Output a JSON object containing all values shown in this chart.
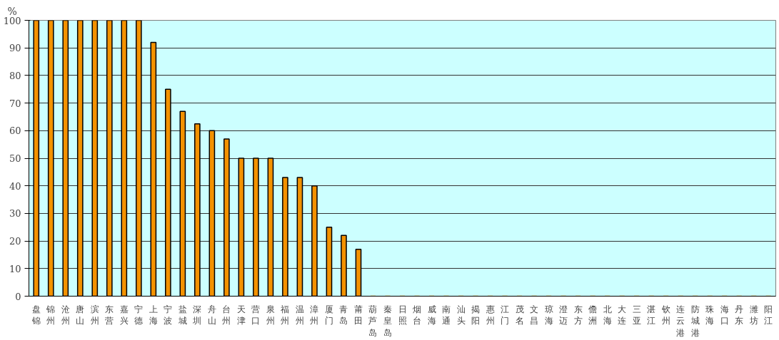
{
  "chart_data": {
    "type": "bar",
    "ylabel": "%",
    "categories": [
      "盘锦",
      "锦州",
      "沧州",
      "唐山",
      "滨州",
      "东营",
      "嘉兴",
      "宁德",
      "上海",
      "宁波",
      "盐城",
      "深圳",
      "舟山",
      "台州",
      "天津",
      "营口",
      "泉州",
      "福州",
      "温州",
      "漳州",
      "厦门",
      "青岛",
      "莆田",
      "葫芦岛",
      "秦皇岛",
      "日照",
      "烟台",
      "威海",
      "南通",
      "汕头",
      "揭阳",
      "惠州",
      "江门",
      "茂名",
      "文昌",
      "琼海",
      "澄迈",
      "东方",
      "儋洲",
      "北海",
      "大连",
      "三亚",
      "湛江",
      "钦州",
      "连云港",
      "防城港",
      "珠海",
      "海口",
      "丹东",
      "潍坊",
      "阳江"
    ],
    "values": [
      100,
      100,
      100,
      100,
      100,
      100,
      100,
      100,
      92,
      75,
      67,
      62.5,
      60,
      57,
      50,
      50,
      50,
      43,
      43,
      40,
      25,
      22,
      17,
      0,
      0,
      0,
      0,
      0,
      0,
      0,
      0,
      0,
      0,
      0,
      0,
      0,
      0,
      0,
      0,
      0,
      0,
      0,
      0,
      0,
      0,
      0,
      0,
      0,
      0,
      0,
      0
    ],
    "color": "#f39200",
    "ylim": [
      0,
      100
    ],
    "yticks": [
      0,
      10,
      20,
      30,
      40,
      50,
      60,
      70,
      80,
      90,
      100
    ],
    "grid": "y"
  }
}
